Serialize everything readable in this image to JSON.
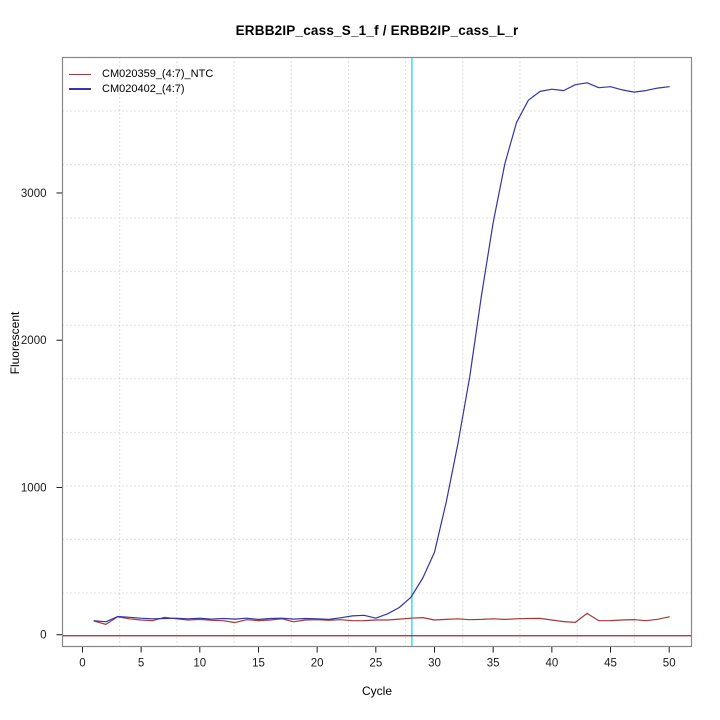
{
  "figure": {
    "title": "ERBB2IP_cass_S_1_f / ERBB2IP_cass_L_r",
    "xlabel": "Cycle",
    "ylabel": "Fluorescent"
  },
  "chart_data": {
    "type": "line",
    "title": "ERBB2IP_cass_S_1_f / ERBB2IP_cass_L_r",
    "xlabel": "Cycle",
    "ylabel": "Fluorescent",
    "x_ticks": [
      0,
      5,
      10,
      15,
      20,
      25,
      30,
      35,
      40,
      45,
      50
    ],
    "y_ticks": [
      0,
      1000,
      2000,
      3000
    ],
    "xlim": [
      -1.7,
      51.9
    ],
    "ylim": [
      -80,
      3920
    ],
    "grid": true,
    "grid_divisions": 11,
    "legend_position": "top-left",
    "x": [
      1,
      2,
      3,
      4,
      5,
      6,
      7,
      8,
      9,
      10,
      11,
      12,
      13,
      14,
      15,
      16,
      17,
      18,
      19,
      20,
      21,
      22,
      23,
      24,
      25,
      26,
      27,
      28,
      29,
      30,
      31,
      32,
      33,
      34,
      35,
      36,
      37,
      38,
      39,
      40,
      41,
      42,
      43,
      44,
      45,
      46,
      47,
      48,
      49,
      50
    ],
    "series": [
      {
        "name": "CM020359_(4:7)_NTC",
        "color": "#A33A3A",
        "values": [
          93,
          70,
          122,
          108,
          100,
          96,
          118,
          108,
          100,
          104,
          98,
          95,
          82,
          102,
          96,
          100,
          108,
          88,
          100,
          102,
          98,
          102,
          95,
          96,
          100,
          100,
          106,
          112,
          116,
          100,
          104,
          108,
          102,
          104,
          108,
          104,
          108,
          110,
          111,
          100,
          89,
          84,
          145,
          95,
          96,
          100,
          103,
          95,
          105,
          122
        ]
      },
      {
        "name": "CM020402_(4:7)",
        "color": "#3434A4",
        "values": [
          95,
          88,
          124,
          118,
          112,
          108,
          110,
          112,
          108,
          112,
          106,
          110,
          106,
          112,
          104,
          110,
          112,
          106,
          110,
          108,
          104,
          115,
          128,
          132,
          112,
          142,
          185,
          255,
          385,
          560,
          900,
          1300,
          1750,
          2300,
          2800,
          3200,
          3480,
          3630,
          3690,
          3705,
          3695,
          3735,
          3748,
          3715,
          3722,
          3700,
          3685,
          3695,
          3712,
          3722
        ]
      }
    ],
    "markers": {
      "threshold_line": {
        "y": 0,
        "color": "#992B2B"
      },
      "ct_line": {
        "x": 28.07,
        "color": "#36E3E9"
      }
    },
    "colors": {
      "grid": "#C0C0C0",
      "box": "#878787",
      "text": "#1A1A1A",
      "background": "#FFFFFF"
    }
  }
}
